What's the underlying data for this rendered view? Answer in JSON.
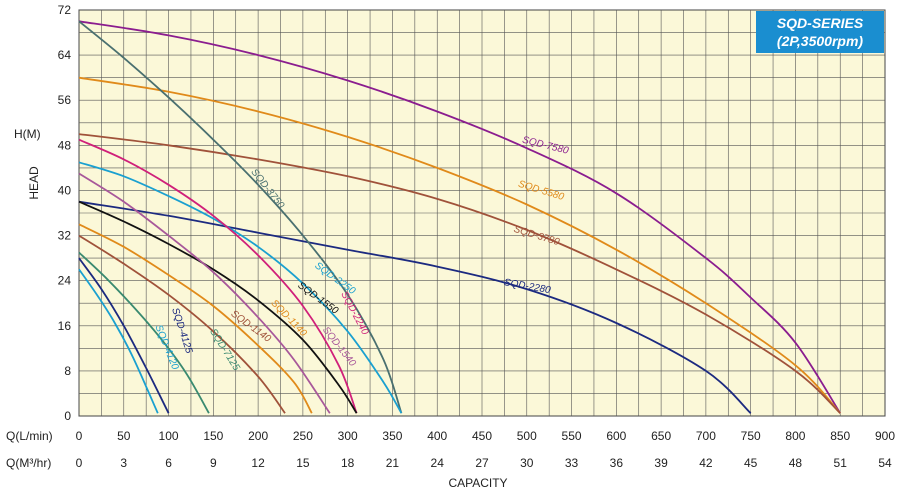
{
  "chart_data": {
    "type": "line",
    "title": "SQD-SERIES",
    "subtitle": "(2P,3500rpm)",
    "ylabel_units": "H(M)",
    "ylabel": "HEAD",
    "xlabel": "CAPACITY",
    "x_axis_1_label": "Q(L/min)",
    "x_axis_2_label": "Q(M³/hr)",
    "xlim": [
      0,
      900
    ],
    "ylim": [
      0,
      72
    ],
    "x_ticks": [
      "0",
      "50",
      "100",
      "150",
      "200",
      "250",
      "300",
      "350",
      "400",
      "450",
      "500",
      "550",
      "600",
      "650",
      "700",
      "750",
      "800",
      "850",
      "900"
    ],
    "x2_ticks": [
      "0",
      "3",
      "6",
      "9",
      "12",
      "15",
      "18",
      "21",
      "24",
      "27",
      "30",
      "33",
      "36",
      "39",
      "42",
      "45",
      "48",
      "51",
      "54"
    ],
    "y_ticks": [
      "0",
      "8",
      "16",
      "24",
      "32",
      "40",
      "48",
      "56",
      "64",
      "72"
    ],
    "grid": true,
    "background": "#fbf8d8",
    "series": [
      {
        "name": "SQD-7580",
        "color": "#8b1d8f",
        "x": [
          0,
          100,
          200,
          300,
          400,
          500,
          600,
          700,
          750,
          800,
          850
        ],
        "y": [
          70,
          67.5,
          64,
          59.5,
          54,
          47.5,
          39.5,
          28,
          21,
          13,
          0.5
        ]
      },
      {
        "name": "SQD-5580",
        "color": "#e08a1a",
        "x": [
          0,
          100,
          200,
          300,
          400,
          500,
          600,
          700,
          800,
          850
        ],
        "y": [
          60,
          57.5,
          54,
          49.5,
          44,
          37.5,
          29.5,
          20,
          9,
          0.5
        ]
      },
      {
        "name": "SQD-3780",
        "color": "#a0523a",
        "x": [
          0,
          100,
          200,
          300,
          400,
          500,
          600,
          700,
          800,
          850
        ],
        "y": [
          50,
          48,
          45.5,
          42.5,
          38.5,
          33,
          26,
          18,
          8,
          0.5
        ]
      },
      {
        "name": "SQD-2280",
        "color": "#1c2a80",
        "x": [
          0,
          100,
          200,
          300,
          400,
          500,
          600,
          700,
          750
        ],
        "y": [
          38,
          35.5,
          32.5,
          29.5,
          26.5,
          22.5,
          16.5,
          8,
          0.5
        ]
      },
      {
        "name": "SQD-3750",
        "color": "#4a7070",
        "x": [
          0,
          50,
          100,
          150,
          200,
          250,
          300,
          340,
          360
        ],
        "y": [
          70,
          63.5,
          56.5,
          49,
          41,
          32,
          21.5,
          10,
          0.5
        ]
      },
      {
        "name": "SQD-2250",
        "color": "#1aa0d0",
        "x": [
          0,
          50,
          100,
          150,
          200,
          250,
          300,
          340,
          360
        ],
        "y": [
          45,
          42.5,
          39,
          35,
          30,
          23.5,
          15,
          6,
          0.5
        ]
      },
      {
        "name": "SQD-2240",
        "color": "#d0207a",
        "x": [
          0,
          50,
          100,
          150,
          200,
          250,
          290,
          310
        ],
        "y": [
          49,
          45.5,
          41,
          35.5,
          28.5,
          19.5,
          9,
          0.5
        ]
      },
      {
        "name": "SQD-1550",
        "color": "#111111",
        "x": [
          0,
          50,
          100,
          150,
          200,
          250,
          290,
          310
        ],
        "y": [
          38,
          34.5,
          30.5,
          26,
          20.5,
          13.5,
          5.5,
          0.5
        ]
      },
      {
        "name": "SQD-1540",
        "color": "#a8589a",
        "x": [
          0,
          50,
          100,
          150,
          200,
          240,
          280
        ],
        "y": [
          43,
          38,
          32,
          25.5,
          17.5,
          10,
          0.5
        ]
      },
      {
        "name": "SQD-1140",
        "color": "#e08a1a",
        "x": [
          0,
          50,
          100,
          150,
          200,
          240,
          260
        ],
        "y": [
          34,
          30,
          25,
          19.5,
          12.5,
          6,
          0.5
        ]
      },
      {
        "name": "SQD-1140",
        "color": "#a0523a",
        "x": [
          0,
          50,
          100,
          150,
          200,
          230
        ],
        "y": [
          32,
          27,
          21.5,
          15,
          7,
          0.5
        ]
      },
      {
        "name": "SQD-7125",
        "color": "#3a8a70",
        "x": [
          0,
          30,
          60,
          90,
          120,
          145
        ],
        "y": [
          29,
          24.5,
          19.5,
          14,
          7.5,
          0.5
        ]
      },
      {
        "name": "SQD-4125",
        "color": "#1c2a80",
        "x": [
          0,
          25,
          50,
          75,
          100
        ],
        "y": [
          28,
          22.5,
          16,
          8.5,
          0.5
        ]
      },
      {
        "name": "SQD-4120",
        "color": "#1aa0d0",
        "x": [
          0,
          20,
          40,
          60,
          88
        ],
        "y": [
          26,
          21.5,
          16.5,
          10.5,
          0.5
        ]
      }
    ],
    "curve_labels": [
      {
        "text": "SQD-7580",
        "x": 520,
        "y": 47.5,
        "angle": 14,
        "color": "#8b1d8f"
      },
      {
        "text": "SQD-5580",
        "x": 515,
        "y": 39.5,
        "angle": 17,
        "color": "#e08a1a"
      },
      {
        "text": "SQD-3780",
        "x": 510,
        "y": 31.5,
        "angle": 17,
        "color": "#a0523a"
      },
      {
        "text": "SQD-2280",
        "x": 500,
        "y": 22.5,
        "angle": 10,
        "color": "#1c2a80"
      },
      {
        "text": "SQD-3750",
        "x": 208,
        "y": 40,
        "angle": 52,
        "color": "#4a7070"
      },
      {
        "text": "SQD-2250",
        "x": 284,
        "y": 24,
        "angle": 36,
        "color": "#1aa0d0"
      },
      {
        "text": "SQD-2240",
        "x": 305,
        "y": 18,
        "angle": 62,
        "color": "#d0207a"
      },
      {
        "text": "SQD-1550",
        "x": 265,
        "y": 20.5,
        "angle": 36,
        "color": "#111111"
      },
      {
        "text": "SQD-1540",
        "x": 288,
        "y": 12,
        "angle": 52,
        "color": "#a8589a"
      },
      {
        "text": "SQD-1140",
        "x": 232,
        "y": 17,
        "angle": 46,
        "color": "#e08a1a"
      },
      {
        "text": "SQD-1140",
        "x": 190,
        "y": 15.5,
        "angle": 36,
        "color": "#a0523a"
      },
      {
        "text": "SQD-7125",
        "x": 160,
        "y": 11.5,
        "angle": 58,
        "color": "#3a8a70"
      },
      {
        "text": "SQD-4125",
        "x": 112,
        "y": 15,
        "angle": 72,
        "color": "#1c2a80"
      },
      {
        "text": "SQD-4120",
        "x": 95,
        "y": 12,
        "angle": 68,
        "color": "#1aa0d0"
      }
    ]
  },
  "badge": {
    "color": "#1a8ed0"
  }
}
